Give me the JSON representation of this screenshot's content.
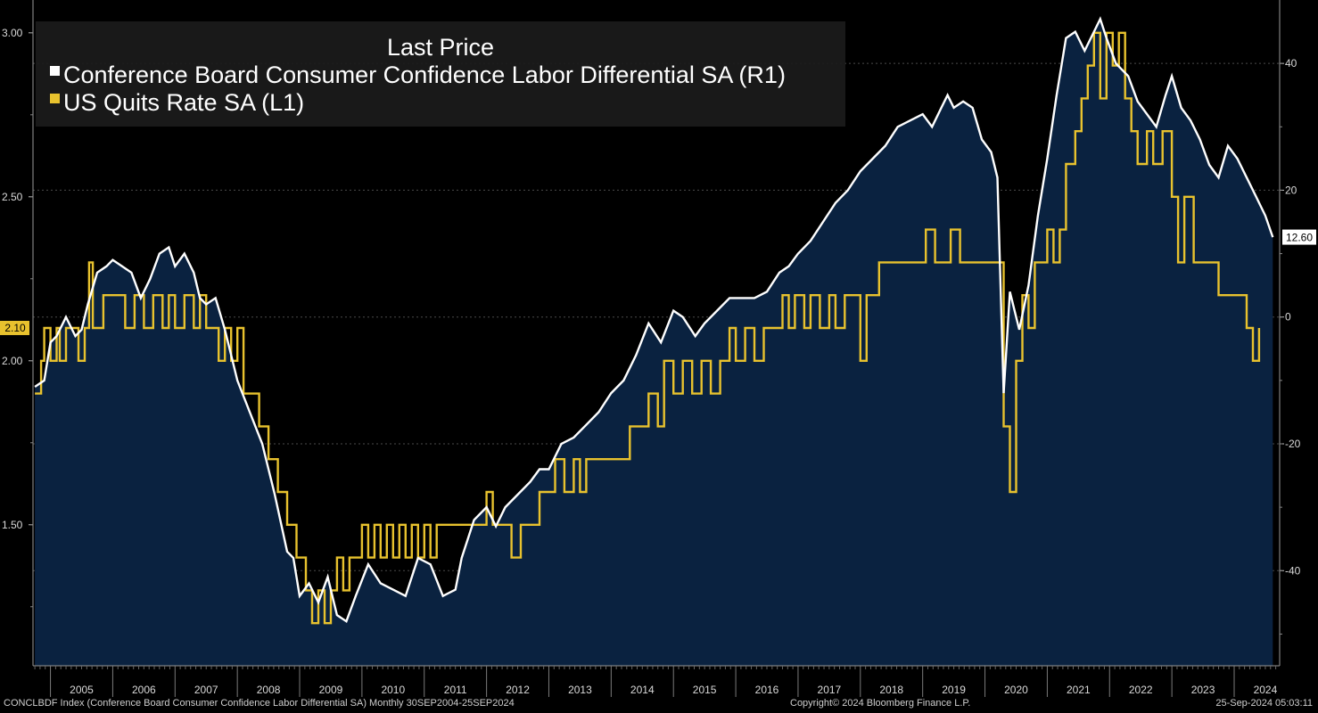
{
  "footer": {
    "left": "CONCLBDF Index (Conference Board Consumer Confidence Labor Differential SA) Monthly 30SEP2004-25SEP2024",
    "center": "Copyright© 2024 Bloomberg Finance L.P.",
    "right": "25-Sep-2024 05:03:11"
  },
  "chart_data": {
    "type": "line",
    "title": "Last Price",
    "colors": {
      "background": "#000000",
      "area": "#0a2240",
      "labor_differential": "#ffffff",
      "quits_rate": "#e8c22e",
      "grid": "#4a4a4a",
      "label_box": "#ffffff",
      "quits_box": "#e8c22e"
    },
    "x_range": [
      2004.72,
      2024.73
    ],
    "x_ticks": [
      "2005",
      "2006",
      "2007",
      "2008",
      "2009",
      "2010",
      "2011",
      "2012",
      "2013",
      "2014",
      "2015",
      "2016",
      "2017",
      "2018",
      "2019",
      "2020",
      "2021",
      "2022",
      "2023",
      "2024"
    ],
    "left_axis": {
      "label": "L1",
      "ticks": [
        "1.50",
        "2.00",
        "2.50",
        "3.00"
      ],
      "ylim": [
        1.07,
        3.1
      ]
    },
    "right_axis": {
      "label": "R1",
      "ticks": [
        "-40",
        "-20",
        "0",
        "20",
        "40"
      ],
      "ylim": [
        -55,
        50
      ]
    },
    "last_values": {
      "quits_rate": "2.10",
      "labor_differential": "12.60"
    },
    "series": [
      {
        "name": "Conference Board Consumer Confidence Labor Differential SA (R1)",
        "axis": "right",
        "style": "area-line",
        "x": [
          2004.75,
          2004.9,
          2005.0,
          2005.1,
          2005.25,
          2005.4,
          2005.5,
          2005.6,
          2005.75,
          2005.9,
          2006.0,
          2006.15,
          2006.3,
          2006.45,
          2006.6,
          2006.75,
          2006.9,
          2007.0,
          2007.15,
          2007.3,
          2007.4,
          2007.5,
          2007.65,
          2007.8,
          2008.0,
          2008.2,
          2008.4,
          2008.6,
          2008.8,
          2008.9,
          2009.0,
          2009.15,
          2009.3,
          2009.45,
          2009.6,
          2009.75,
          2009.9,
          2010.1,
          2010.3,
          2010.5,
          2010.7,
          2010.9,
          2011.1,
          2011.3,
          2011.5,
          2011.6,
          2011.8,
          2012.0,
          2012.15,
          2012.3,
          2012.5,
          2012.7,
          2012.85,
          2013.0,
          2013.2,
          2013.4,
          2013.6,
          2013.8,
          2014.0,
          2014.2,
          2014.4,
          2014.6,
          2014.8,
          2015.0,
          2015.15,
          2015.35,
          2015.5,
          2015.7,
          2015.9,
          2016.1,
          2016.3,
          2016.5,
          2016.7,
          2016.85,
          2017.0,
          2017.2,
          2017.4,
          2017.6,
          2017.8,
          2018.0,
          2018.2,
          2018.4,
          2018.6,
          2018.8,
          2019.0,
          2019.15,
          2019.3,
          2019.4,
          2019.5,
          2019.65,
          2019.8,
          2019.95,
          2020.1,
          2020.2,
          2020.3,
          2020.4,
          2020.55,
          2020.7,
          2020.85,
          2021.0,
          2021.15,
          2021.3,
          2021.45,
          2021.6,
          2021.75,
          2021.85,
          2021.95,
          2022.1,
          2022.3,
          2022.45,
          2022.6,
          2022.75,
          2022.9,
          2023.0,
          2023.15,
          2023.3,
          2023.45,
          2023.6,
          2023.75,
          2023.9,
          2024.05,
          2024.2,
          2024.35,
          2024.5,
          2024.62
        ],
        "values": [
          -11,
          -10,
          -4,
          -3,
          0,
          -3,
          -2,
          2,
          7,
          8,
          9,
          8,
          7,
          3,
          6,
          10,
          11,
          8,
          10,
          7,
          3,
          2,
          3,
          -2,
          -10,
          -15,
          -20,
          -28,
          -37,
          -38,
          -44,
          -42,
          -45,
          -41,
          -47,
          -48,
          -44,
          -39,
          -42,
          -43,
          -44,
          -38,
          -39,
          -44,
          -43,
          -38,
          -32,
          -30,
          -33,
          -30,
          -28,
          -26,
          -24,
          -24,
          -20,
          -19,
          -17,
          -15,
          -12,
          -10,
          -6,
          -1,
          -4,
          1,
          0,
          -3,
          -1,
          1,
          3,
          3,
          3,
          4,
          7,
          8,
          10,
          12,
          15,
          18,
          20,
          23,
          25,
          27,
          30,
          31,
          32,
          30,
          33,
          35,
          33,
          34,
          33,
          28,
          26,
          22,
          -12,
          4,
          -2,
          5,
          16,
          25,
          35,
          44,
          45,
          42,
          45,
          47,
          44,
          40,
          38,
          34,
          32,
          30,
          35,
          38,
          33,
          31,
          28,
          24,
          22,
          27,
          25,
          22,
          19,
          16,
          12.6
        ]
      },
      {
        "name": "US Quits Rate SA (L1)",
        "axis": "left",
        "style": "step",
        "x": [
          2004.75,
          2004.85,
          2004.9,
          2005.0,
          2005.1,
          2005.15,
          2005.25,
          2005.35,
          2005.45,
          2005.55,
          2005.62,
          2005.68,
          2005.75,
          2005.85,
          2006.05,
          2006.2,
          2006.35,
          2006.5,
          2006.65,
          2006.8,
          2006.9,
          2007.0,
          2007.15,
          2007.3,
          2007.4,
          2007.5,
          2007.6,
          2007.7,
          2007.8,
          2007.9,
          2008.0,
          2008.1,
          2008.2,
          2008.35,
          2008.5,
          2008.65,
          2008.8,
          2008.95,
          2009.1,
          2009.2,
          2009.3,
          2009.4,
          2009.5,
          2009.6,
          2009.7,
          2009.8,
          2009.9,
          2010.0,
          2010.1,
          2010.2,
          2010.3,
          2010.4,
          2010.5,
          2010.6,
          2010.7,
          2010.8,
          2010.9,
          2011.0,
          2011.1,
          2011.2,
          2011.3,
          2011.4,
          2011.55,
          2011.7,
          2011.85,
          2012.0,
          2012.1,
          2012.25,
          2012.4,
          2012.55,
          2012.7,
          2012.85,
          2013.0,
          2013.1,
          2013.25,
          2013.4,
          2013.5,
          2013.6,
          2013.75,
          2013.9,
          2014.0,
          2014.15,
          2014.3,
          2014.4,
          2014.5,
          2014.6,
          2014.75,
          2014.85,
          2015.0,
          2015.15,
          2015.3,
          2015.45,
          2015.6,
          2015.75,
          2015.9,
          2016.0,
          2016.15,
          2016.3,
          2016.45,
          2016.55,
          2016.65,
          2016.75,
          2016.85,
          2016.95,
          2017.1,
          2017.2,
          2017.35,
          2017.5,
          2017.6,
          2017.75,
          2017.9,
          2018.0,
          2018.1,
          2018.3,
          2018.6,
          2018.8,
          2018.95,
          2019.05,
          2019.2,
          2019.3,
          2019.45,
          2019.6,
          2019.8,
          2019.9,
          2020.0,
          2020.1,
          2020.2,
          2020.3,
          2020.4,
          2020.5,
          2020.6,
          2020.7,
          2020.8,
          2020.9,
          2021.0,
          2021.1,
          2021.2,
          2021.3,
          2021.45,
          2021.55,
          2021.65,
          2021.75,
          2021.85,
          2021.95,
          2022.05,
          2022.15,
          2022.25,
          2022.35,
          2022.45,
          2022.6,
          2022.7,
          2022.85,
          2023.0,
          2023.1,
          2023.2,
          2023.35,
          2023.5,
          2023.6,
          2023.75,
          2023.9,
          2024.05,
          2024.2,
          2024.3,
          2024.4
        ],
        "values": [
          1.9,
          2.0,
          2.1,
          2.0,
          2.1,
          2.0,
          2.1,
          2.1,
          2.0,
          2.1,
          2.3,
          2.1,
          2.1,
          2.2,
          2.2,
          2.1,
          2.2,
          2.1,
          2.2,
          2.1,
          2.2,
          2.1,
          2.2,
          2.1,
          2.2,
          2.1,
          2.1,
          2.0,
          2.1,
          2.0,
          2.1,
          1.9,
          1.9,
          1.8,
          1.7,
          1.6,
          1.5,
          1.4,
          1.3,
          1.2,
          1.3,
          1.2,
          1.3,
          1.4,
          1.3,
          1.4,
          1.4,
          1.5,
          1.4,
          1.5,
          1.4,
          1.5,
          1.4,
          1.5,
          1.4,
          1.5,
          1.4,
          1.5,
          1.4,
          1.5,
          1.5,
          1.5,
          1.5,
          1.5,
          1.5,
          1.6,
          1.5,
          1.5,
          1.4,
          1.5,
          1.5,
          1.6,
          1.6,
          1.7,
          1.6,
          1.7,
          1.6,
          1.7,
          1.7,
          1.7,
          1.7,
          1.7,
          1.8,
          1.8,
          1.8,
          1.9,
          1.8,
          2.0,
          1.9,
          2.0,
          1.9,
          2.0,
          1.9,
          2.0,
          2.1,
          2.0,
          2.1,
          2.0,
          2.1,
          2.1,
          2.1,
          2.2,
          2.1,
          2.2,
          2.1,
          2.2,
          2.1,
          2.2,
          2.1,
          2.2,
          2.2,
          2.0,
          2.2,
          2.3,
          2.3,
          2.3,
          2.3,
          2.4,
          2.3,
          2.3,
          2.4,
          2.3,
          2.3,
          2.3,
          2.3,
          2.3,
          2.3,
          1.8,
          1.6,
          2.0,
          2.2,
          2.1,
          2.3,
          2.3,
          2.4,
          2.3,
          2.4,
          2.6,
          2.7,
          2.8,
          2.9,
          3.0,
          2.8,
          3.0,
          2.9,
          3.0,
          2.8,
          2.7,
          2.6,
          2.7,
          2.6,
          2.7,
          2.5,
          2.3,
          2.5,
          2.3,
          2.3,
          2.3,
          2.2,
          2.2,
          2.2,
          2.1,
          2.0,
          2.1
        ]
      }
    ]
  }
}
